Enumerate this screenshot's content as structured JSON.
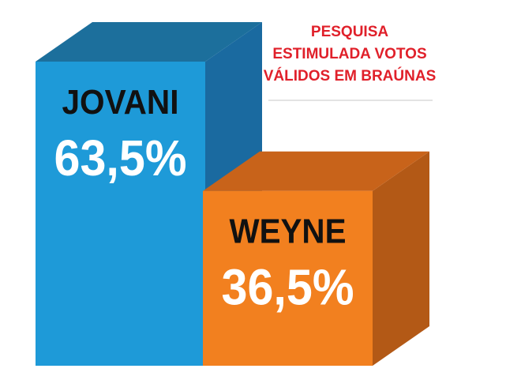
{
  "chart_data": {
    "type": "bar",
    "title_lines": [
      "PESQUISA",
      "ESTIMULADA VOTOS",
      "VÁLIDOS EM BRAÚNAS"
    ],
    "categories": [
      "JOVANI",
      "WEYNE"
    ],
    "values": [
      63.5,
      36.5
    ],
    "value_labels": [
      "63,5%",
      "36,5%"
    ],
    "ylim": [
      0,
      63.5
    ],
    "grid": false,
    "legend": "none",
    "colors": {
      "title": "#e0202a",
      "bars": [
        {
          "front": "#1e9ad8",
          "top": "#1c6f9c",
          "side": "#1a6aa0"
        },
        {
          "front": "#f2801f",
          "top": "#c8631a",
          "side": "#b35916"
        }
      ],
      "separator": "#e3e3e3",
      "name_text": "#111111",
      "value_text": "#ffffff"
    }
  }
}
